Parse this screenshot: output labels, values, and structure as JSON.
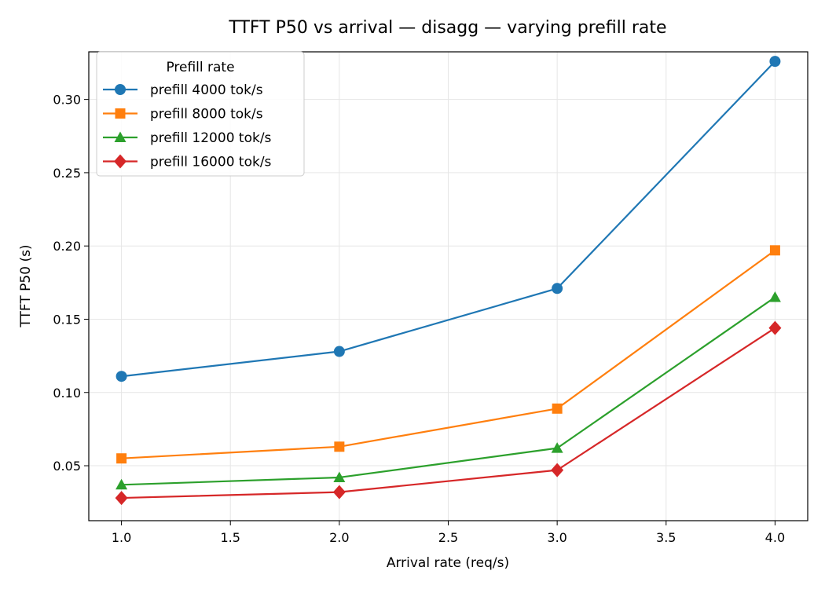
{
  "chart_data": {
    "type": "line",
    "title": "TTFT P50 vs arrival — disagg — varying prefill rate",
    "xlabel": "Arrival rate (req/s)",
    "ylabel": "TTFT P50 (s)",
    "xlim": [
      0.85,
      4.15
    ],
    "ylim": [
      0.0125,
      0.3325
    ],
    "x_ticks": [
      "1.0",
      "1.5",
      "2.0",
      "2.5",
      "3.0",
      "3.5",
      "4.0"
    ],
    "y_ticks": [
      "0.05",
      "0.10",
      "0.15",
      "0.20",
      "0.25",
      "0.30"
    ],
    "grid": true,
    "legend": {
      "title": "Prefill rate",
      "placement": "top-left"
    },
    "x": [
      1.0,
      2.0,
      3.0,
      4.0
    ],
    "series": [
      {
        "name": "prefill 4000 tok/s",
        "color": "#1f77b4",
        "marker": "circle",
        "values": [
          0.111,
          0.128,
          0.171,
          0.326
        ]
      },
      {
        "name": "prefill 8000 tok/s",
        "color": "#ff7f0e",
        "marker": "square",
        "values": [
          0.055,
          0.063,
          0.089,
          0.197
        ]
      },
      {
        "name": "prefill 12000 tok/s",
        "color": "#2ca02c",
        "marker": "triangle",
        "values": [
          0.037,
          0.042,
          0.062,
          0.165
        ]
      },
      {
        "name": "prefill 16000 tok/s",
        "color": "#d62728",
        "marker": "diamond",
        "values": [
          0.028,
          0.032,
          0.047,
          0.144
        ]
      }
    ]
  }
}
